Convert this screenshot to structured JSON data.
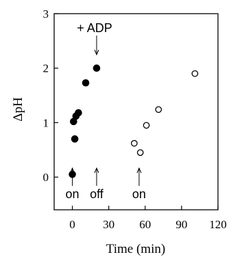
{
  "chart_data": {
    "type": "scatter",
    "xlabel": "Time (min)",
    "ylabel": "ΔpH",
    "xlim": [
      -15,
      120
    ],
    "ylim": [
      -0.6,
      3
    ],
    "x_ticks": [
      0,
      30,
      60,
      90,
      120
    ],
    "y_ticks": [
      0,
      1,
      2,
      3
    ],
    "grid": false,
    "series": [
      {
        "marker": "filled-circle",
        "points": [
          {
            "x": 0,
            "y": 0.05
          },
          {
            "x": 1,
            "y": 1.02
          },
          {
            "x": 2,
            "y": 0.7
          },
          {
            "x": 3,
            "y": 1.12
          },
          {
            "x": 5,
            "y": 1.18
          },
          {
            "x": 11,
            "y": 1.73
          },
          {
            "x": 20,
            "y": 2.0
          }
        ]
      },
      {
        "marker": "open-circle",
        "points": [
          {
            "x": 51,
            "y": 0.62
          },
          {
            "x": 56,
            "y": 0.45
          },
          {
            "x": 61,
            "y": 0.95
          },
          {
            "x": 71,
            "y": 1.24
          },
          {
            "x": 101,
            "y": 1.9
          }
        ]
      }
    ],
    "annotations": [
      {
        "text": "on",
        "x": 0
      },
      {
        "text": "off",
        "x": 20
      },
      {
        "text": "on",
        "x": 55
      },
      {
        "text": "+ ADP",
        "x": 20
      }
    ]
  },
  "colors": {
    "axis": "#000000",
    "marker": "#000000",
    "background": "#ffffff"
  }
}
